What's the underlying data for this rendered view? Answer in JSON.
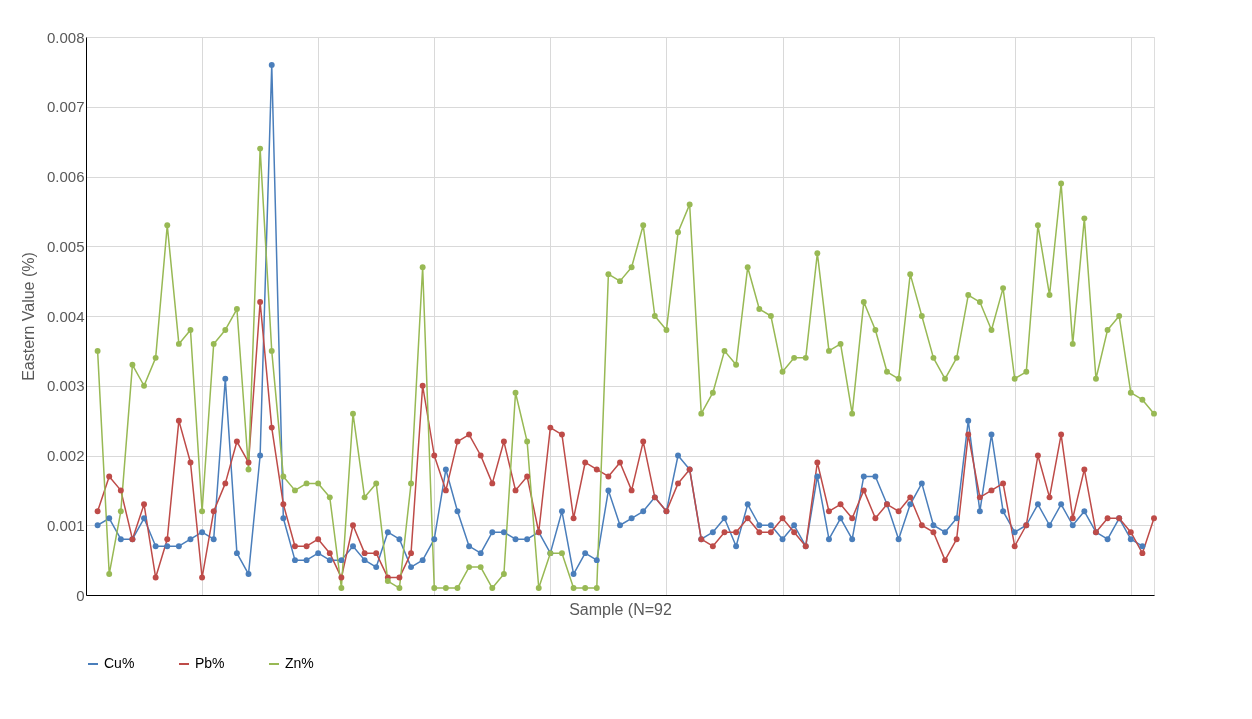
{
  "chart_data": {
    "type": "line",
    "xlabel": "Sample (N=92",
    "ylabel": "Eastern Value (%)",
    "categories": [
      null,
      null,
      null,
      null,
      null,
      null,
      null,
      null,
      null,
      null,
      null,
      null,
      null,
      null,
      null,
      null,
      null,
      null,
      null,
      null,
      null,
      null,
      null,
      null,
      null,
      null,
      null,
      null,
      null,
      null,
      null,
      null,
      null,
      null,
      null,
      null,
      null,
      null,
      null,
      null,
      null,
      null,
      null,
      null,
      null,
      null,
      null,
      null,
      null,
      null,
      null,
      null,
      null,
      null,
      null,
      null,
      null,
      null,
      null,
      null,
      null,
      null,
      null,
      null,
      null,
      null,
      null,
      null,
      null,
      null,
      null,
      null,
      null,
      null,
      null,
      null,
      null,
      null,
      null,
      null,
      null,
      null,
      null,
      null,
      null,
      null,
      null,
      null,
      null,
      null,
      null,
      null
    ],
    "series": [
      {
        "name": "Cu%",
        "color": "#4a7ebb",
        "values": [
          0.001,
          0.0011,
          0.0008,
          0.0008,
          0.0011,
          0.0007,
          0.0007,
          0.0007,
          0.0008,
          0.0009,
          0.0008,
          0.0031,
          0.0006,
          0.0003,
          0.002,
          0.0076,
          0.0011,
          0.0005,
          0.0005,
          0.0006,
          0.0005,
          0.0005,
          0.0007,
          0.0005,
          0.0004,
          0.0009,
          0.0008,
          0.0004,
          0.0005,
          0.0008,
          0.0018,
          0.0012,
          0.0007,
          0.0006,
          0.0009,
          0.0009,
          0.0008,
          0.0008,
          0.0009,
          0.0006,
          0.0012,
          0.0003,
          0.0006,
          0.0005,
          0.0015,
          0.001,
          0.0011,
          0.0012,
          0.0014,
          0.0012,
          0.002,
          0.0018,
          0.0008,
          0.0009,
          0.0011,
          0.0007,
          0.0013,
          0.001,
          0.001,
          0.0008,
          0.001,
          0.0007,
          0.0017,
          0.0008,
          0.0011,
          0.0008,
          0.0017,
          0.0017,
          0.0013,
          0.0008,
          0.0013,
          0.0016,
          0.001,
          0.0009,
          0.0011,
          0.0025,
          0.0012,
          0.0023,
          0.0012,
          0.0009,
          0.001,
          0.0013,
          0.001,
          0.0013,
          0.001,
          0.0012,
          0.0009,
          0.0008,
          0.0011,
          0.0008,
          0.0007,
          null
        ]
      },
      {
        "name": "Pb%",
        "color": "#be4b48",
        "values": [
          0.0012,
          0.0017,
          0.0015,
          0.0008,
          0.0013,
          0.00025,
          0.0008,
          0.0025,
          0.0019,
          0.00025,
          0.0012,
          0.0016,
          0.0022,
          0.0019,
          0.0042,
          0.0024,
          0.0013,
          0.0007,
          0.0007,
          0.0008,
          0.0006,
          0.00025,
          0.001,
          0.0006,
          0.0006,
          0.00025,
          0.00025,
          0.0006,
          0.003,
          0.002,
          0.0015,
          0.0022,
          0.0023,
          0.002,
          0.0016,
          0.0022,
          0.0015,
          0.0017,
          0.0009,
          0.0024,
          0.0023,
          0.0011,
          0.0019,
          0.0018,
          0.0017,
          0.0019,
          0.0015,
          0.0022,
          0.0014,
          0.0012,
          0.0016,
          0.0018,
          0.0008,
          0.0007,
          0.0009,
          0.0009,
          0.0011,
          0.0009,
          0.0009,
          0.0011,
          0.0009,
          0.0007,
          0.0019,
          0.0012,
          0.0013,
          0.0011,
          0.0015,
          0.0011,
          0.0013,
          0.0012,
          0.0014,
          0.001,
          0.0009,
          0.0005,
          0.0008,
          0.0023,
          0.0014,
          0.0015,
          0.0016,
          0.0007,
          0.001,
          0.002,
          0.0014,
          0.0023,
          0.0011,
          0.0018,
          0.0009,
          0.0011,
          0.0011,
          0.0009,
          0.0006,
          0.0011
        ]
      },
      {
        "name": "Zn%",
        "color": "#98b954",
        "values": [
          0.0035,
          0.0003,
          0.0012,
          0.0033,
          0.003,
          0.0034,
          0.0053,
          0.0036,
          0.0038,
          0.0012,
          0.0036,
          0.0038,
          0.0041,
          0.0018,
          0.0064,
          0.0035,
          0.0017,
          0.0015,
          0.0016,
          0.0016,
          0.0014,
          0.0001,
          0.0026,
          0.0014,
          0.0016,
          0.0002,
          0.0001,
          0.0016,
          0.0047,
          0.0001,
          0.0001,
          0.0001,
          0.0004,
          0.0004,
          0.0001,
          0.0003,
          0.0029,
          0.0022,
          0.0001,
          0.0006,
          0.0006,
          0.0001,
          0.0001,
          0.0001,
          0.0046,
          0.0045,
          0.0047,
          0.0053,
          0.004,
          0.0038,
          0.0052,
          0.0056,
          0.0026,
          0.0029,
          0.0035,
          0.0033,
          0.0047,
          0.0041,
          0.004,
          0.0032,
          0.0034,
          0.0034,
          0.0049,
          0.0035,
          0.0036,
          0.0026,
          0.0042,
          0.0038,
          0.0032,
          0.0031,
          0.0046,
          0.004,
          0.0034,
          0.0031,
          0.0034,
          0.0043,
          0.0042,
          0.0038,
          0.0044,
          0.0031,
          0.0032,
          0.0053,
          0.0043,
          0.0059,
          0.0036,
          0.0054,
          0.0031,
          0.0038,
          0.004,
          0.0029,
          0.0028,
          0.0026
        ]
      }
    ],
    "ylim": [
      0,
      0.008
    ],
    "yticks": [
      0,
      0.001,
      0.002,
      0.003,
      0.004,
      0.005,
      0.006,
      0.007,
      0.008
    ],
    "grid": true,
    "legend": "bottom",
    "marker": "circle",
    "line_style": "solid"
  }
}
